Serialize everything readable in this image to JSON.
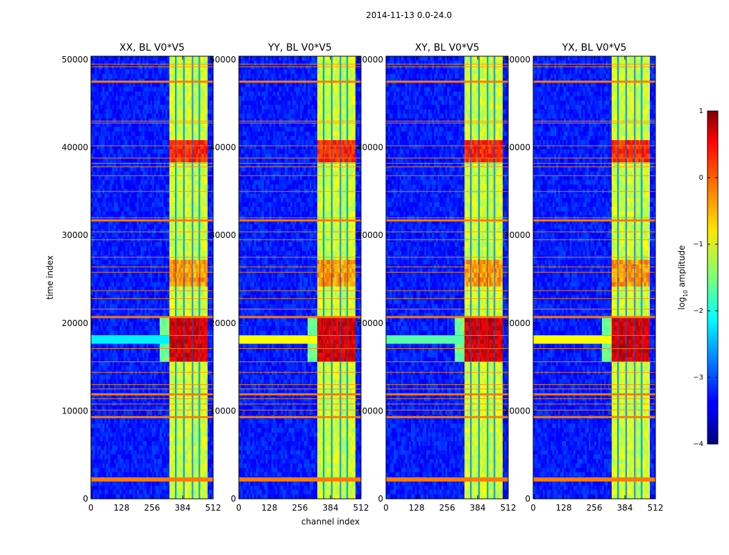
{
  "chart_data": {
    "type": "heatmap",
    "suptitle": "2014-11-13 0.0-24.0",
    "xlabel": "channel index",
    "ylabel": "time index",
    "xlim": [
      0,
      512
    ],
    "ylim": [
      0,
      50400
    ],
    "xticks": [
      0,
      128,
      256,
      384,
      512
    ],
    "yticks": [
      0,
      10000,
      20000,
      30000,
      40000,
      50000
    ],
    "panels": [
      {
        "title": "XX, BL V0*V5",
        "pol": "XX"
      },
      {
        "title": "YY, BL V0*V5",
        "pol": "YY"
      },
      {
        "title": "XY, BL V0*V5",
        "pol": "XY"
      },
      {
        "title": "YX, BL V0*V5",
        "pol": "YX"
      }
    ],
    "colorbar": {
      "label": "log10 amplitude",
      "label_main": "log",
      "label_sub": "10",
      "label_rest": " amplitude",
      "range": [
        -4,
        1
      ],
      "ticks": [
        1,
        0,
        -1,
        -2,
        -3,
        -4
      ],
      "tick_labels": [
        "1",
        "0",
        "−1",
        "−2",
        "−3",
        "−4"
      ],
      "colormap": "jet"
    },
    "features": {
      "bright_band_channels": [
        325,
        485
      ],
      "channel_gaps": [
        355,
        390,
        425,
        455
      ],
      "strong_rfi_rows": [
        2200,
        9300,
        11900,
        20700,
        31700,
        47500
      ],
      "thin_rfi_rows": [
        10100,
        10800,
        11400,
        12500,
        13000,
        14400,
        15600,
        17100,
        18600,
        21600,
        22800,
        23700,
        25800,
        26400,
        27500,
        29500,
        30400,
        32000,
        35000,
        36800,
        37800,
        38200,
        38800,
        40200,
        42800,
        43000,
        49200,
        49500
      ],
      "intense_interval": [
        15500,
        20500
      ],
      "broadband_strip": [
        17600,
        18700
      ]
    }
  }
}
